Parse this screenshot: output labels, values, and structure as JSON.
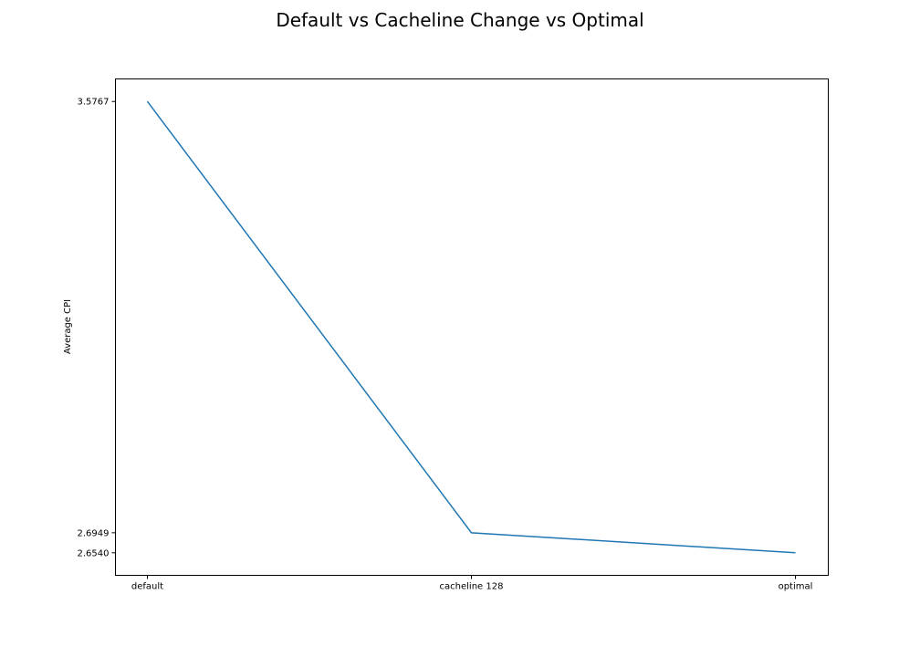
{
  "chart_data": {
    "type": "line",
    "title": "Default vs Cacheline Change vs Optimal",
    "xlabel": "",
    "ylabel": "Average CPI",
    "categories": [
      "default",
      "cacheline 128",
      "optimal"
    ],
    "series": [
      {
        "values": [
          3.5767,
          2.6949,
          2.654
        ],
        "color": "#1f77b4"
      }
    ],
    "y_ticks": [
      "3.5767",
      "2.6949",
      "2.6540"
    ],
    "grid": false,
    "legend": false
  }
}
